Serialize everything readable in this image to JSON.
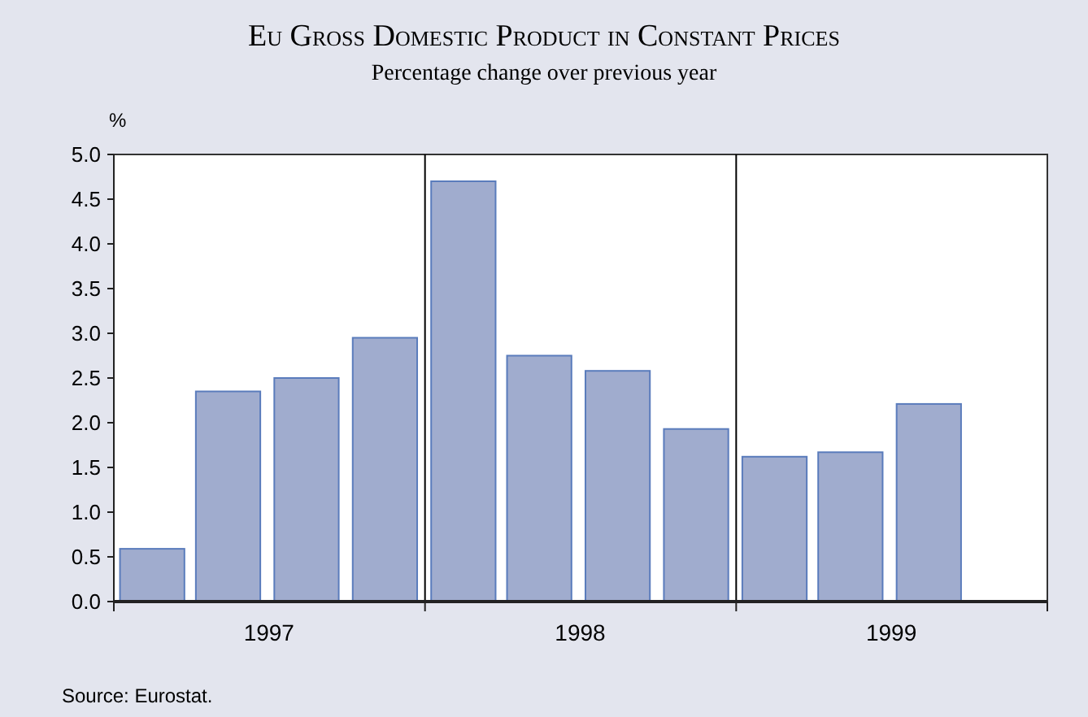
{
  "chart_data": {
    "type": "bar",
    "title": "Eu Gross Domestic Product in Constant Prices",
    "subtitle": "Percentage change over previous year",
    "ylabel": "%",
    "x": [
      "1997-02-15",
      "1997-05-15",
      "1997-08-15",
      "1997-11-15",
      "1998-02-15",
      "1998-05-15",
      "1998-08-15",
      "1998-11-15",
      "1999-02-15",
      "1999-05-15",
      "1999-08-15"
    ],
    "values": [
      0.59,
      2.35,
      2.5,
      2.95,
      4.7,
      2.75,
      2.58,
      1.93,
      1.62,
      1.67,
      2.21
    ],
    "color": "#a0acce",
    "xlim": [
      "1997-01-01",
      "2000-01-01"
    ],
    "xticks": [
      {
        "value": "1997-01-01",
        "label": null
      },
      {
        "value": "1997-07-02",
        "label": "1997"
      },
      {
        "value": "1998-01-01",
        "label": null
      },
      {
        "value": "1998-07-02",
        "label": "1998"
      },
      {
        "value": "1999-01-01",
        "label": null
      },
      {
        "value": "1999-07-02",
        "label": "1999"
      },
      {
        "value": "2000-01-01",
        "label": null
      }
    ],
    "ylim": [
      0,
      5
    ],
    "yticks": [
      {
        "value": 0,
        "label": "0.0"
      },
      0.5,
      {
        "value": 1,
        "label": "1.0"
      },
      1.5,
      {
        "value": 2,
        "label": "2.0"
      },
      2.5,
      {
        "value": 3,
        "label": "3.0"
      },
      3.5,
      {
        "value": 4,
        "label": "4.0"
      },
      4.5,
      {
        "value": 5,
        "label": "5.0"
      }
    ],
    "ref_lines": [
      {
        "axis": "x",
        "value": "1998-01-01",
        "color": "#000000"
      },
      {
        "axis": "x",
        "value": "1999-01-01",
        "color": "#000000"
      }
    ],
    "annotations": [
      "Source: Eurostat."
    ]
  }
}
